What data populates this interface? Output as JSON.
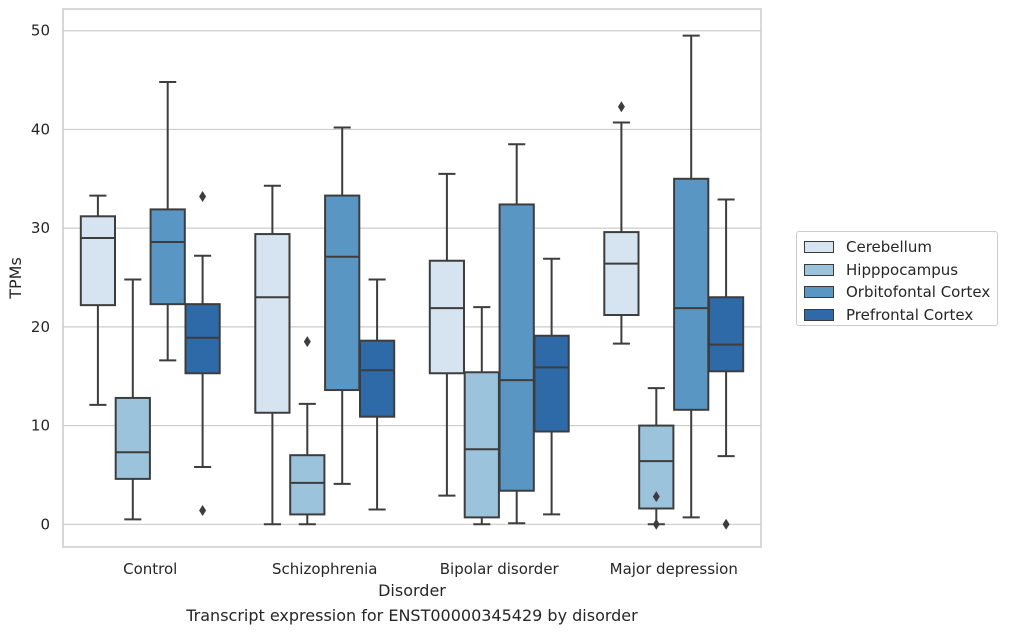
{
  "chart_data": {
    "type": "box",
    "xlabel": "Disorder",
    "ylabel": "TPMs",
    "ylim": [
      -2.3,
      52.2
    ],
    "yticks": [
      0,
      10,
      20,
      30,
      40,
      50
    ],
    "grid": "horizontal",
    "legend_position": "right",
    "categories": [
      "Control",
      "Schizophrenia",
      "Bipolar disorder",
      "Major depression"
    ],
    "series": [
      {
        "name": "Cerebellum",
        "color": "#d6e4f2",
        "boxes": [
          {
            "low": 12.1,
            "q1": 22.2,
            "median": 29.0,
            "q3": 31.2,
            "high": 33.3,
            "outliers": []
          },
          {
            "low": 0.0,
            "q1": 11.3,
            "median": 23.0,
            "q3": 29.4,
            "high": 34.3,
            "outliers": []
          },
          {
            "low": 2.9,
            "q1": 15.3,
            "median": 21.9,
            "q3": 26.7,
            "high": 35.5,
            "outliers": []
          },
          {
            "low": 18.3,
            "q1": 21.2,
            "median": 26.4,
            "q3": 29.6,
            "high": 40.7,
            "outliers": [
              42.3
            ]
          }
        ]
      },
      {
        "name": "Hipppocampus",
        "color": "#9cc3dc",
        "boxes": [
          {
            "low": 0.5,
            "q1": 4.6,
            "median": 7.3,
            "q3": 12.8,
            "high": 24.8,
            "outliers": []
          },
          {
            "low": 0.0,
            "q1": 1.0,
            "median": 4.2,
            "q3": 7.0,
            "high": 12.2,
            "outliers": [
              18.5
            ]
          },
          {
            "low": 0.0,
            "q1": 0.7,
            "median": 7.6,
            "q3": 15.4,
            "high": 22.0,
            "outliers": []
          },
          {
            "low": 0.0,
            "q1": 1.6,
            "median": 6.4,
            "q3": 10.0,
            "high": 13.8,
            "outliers": [
              2.8,
              0.0
            ]
          }
        ]
      },
      {
        "name": "Orbitofontal Cortex",
        "color": "#5a96c3",
        "boxes": [
          {
            "low": 16.6,
            "q1": 22.3,
            "median": 28.6,
            "q3": 31.9,
            "high": 44.8,
            "outliers": []
          },
          {
            "low": 4.1,
            "q1": 13.6,
            "median": 27.1,
            "q3": 33.3,
            "high": 40.2,
            "outliers": []
          },
          {
            "low": 0.1,
            "q1": 3.4,
            "median": 14.6,
            "q3": 32.4,
            "high": 38.5,
            "outliers": []
          },
          {
            "low": 0.7,
            "q1": 11.6,
            "median": 21.9,
            "q3": 35.0,
            "high": 49.5,
            "outliers": []
          }
        ]
      },
      {
        "name": "Prefrontal Cortex",
        "color": "#2e6aa8",
        "boxes": [
          {
            "low": 5.8,
            "q1": 15.3,
            "median": 18.9,
            "q3": 22.3,
            "high": 27.2,
            "outliers": [
              33.2,
              1.4
            ]
          },
          {
            "low": 1.5,
            "q1": 10.9,
            "median": 15.6,
            "q3": 18.6,
            "high": 24.8,
            "outliers": []
          },
          {
            "low": 1.0,
            "q1": 9.4,
            "median": 15.9,
            "q3": 19.1,
            "high": 26.9,
            "outliers": []
          },
          {
            "low": 6.9,
            "q1": 15.5,
            "median": 18.2,
            "q3": 23.0,
            "high": 32.9,
            "outliers": [
              0.0
            ]
          }
        ]
      }
    ]
  },
  "caption": "Transcript expression for ENST00000345429 by disorder"
}
